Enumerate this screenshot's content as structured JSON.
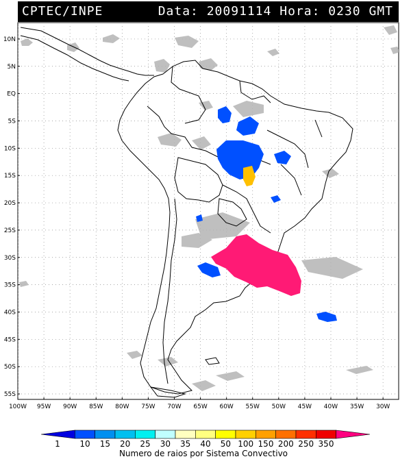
{
  "header": {
    "source": "CPTEC/INPE",
    "date_label": "Data:",
    "date_value": "20091114",
    "time_label": "Hora:",
    "time_value": "0230 GMT"
  },
  "map": {
    "lat_labels": [
      "10N",
      "5N",
      "EQ",
      "5S",
      "10S",
      "15S",
      "20S",
      "25S",
      "30S",
      "35S",
      "40S",
      "45S",
      "50S",
      "55S"
    ],
    "lon_labels": [
      "100W",
      "95W",
      "90W",
      "85W",
      "80W",
      "75W",
      "70W",
      "65W",
      "60W",
      "55W",
      "50W",
      "45W",
      "40W",
      "35W",
      "30W"
    ],
    "lat_values": [
      10,
      5,
      0,
      -5,
      -10,
      -15,
      -20,
      -25,
      -30,
      -35,
      -40,
      -45,
      -50,
      -55
    ],
    "lon_values": [
      -100,
      -95,
      -90,
      -85,
      -80,
      -75,
      -70,
      -65,
      -60,
      -55,
      -50,
      -45,
      -40,
      -35,
      -30
    ],
    "lon_range": [
      -100,
      -27
    ],
    "lat_range": [
      -56,
      13
    ],
    "grid": "dotted"
  },
  "colorbar": {
    "ticks": [
      "1",
      "10",
      "15",
      "20",
      "25",
      "30",
      "35",
      "40",
      "50",
      "100",
      "150",
      "200",
      "250",
      "350"
    ],
    "colors": [
      "#0000e0",
      "#0050ff",
      "#0090f0",
      "#00c0f0",
      "#00f0f0",
      "#c0ffff",
      "#ffffc0",
      "#ffff80",
      "#ffff00",
      "#ffd000",
      "#ffa000",
      "#ff7000",
      "#ff3000",
      "#f00000",
      "#ff0080"
    ],
    "caption": "Numero de raios por Sistema Convectivo"
  },
  "systems": [
    {
      "name": "amazon-north-cluster",
      "color": "#0050ff",
      "level": "10"
    },
    {
      "name": "central-brazil-cluster",
      "color": "#0050ff",
      "level": "10"
    },
    {
      "name": "mato-grosso-cluster",
      "color": "#ffc000",
      "level": "100"
    },
    {
      "name": "southeast-cluster",
      "color": "#0050ff",
      "level": "10"
    },
    {
      "name": "argentina-west-cluster",
      "color": "#0050ff",
      "level": "10"
    },
    {
      "name": "south-america-large-system",
      "color": "#ff0070",
      "level": "350"
    },
    {
      "name": "atlantic-cluster",
      "color": "#0050ff",
      "level": "10"
    },
    {
      "name": "chile-small-cluster",
      "color": "#0050ff",
      "level": "10"
    }
  ]
}
